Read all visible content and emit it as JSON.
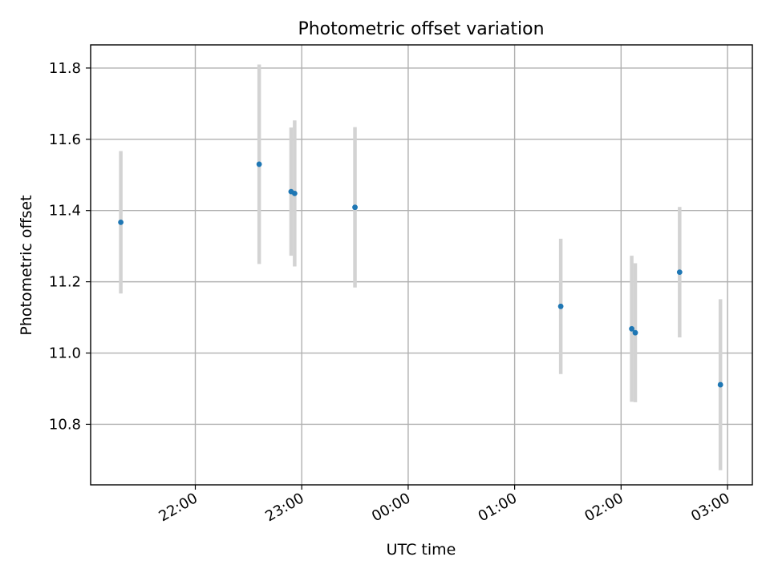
{
  "chart_data": {
    "type": "scatter",
    "title": "Photometric offset variation",
    "xlabel": "UTC time",
    "ylabel": "Photometric offset",
    "xlim": [
      "21:01",
      "03:14"
    ],
    "ylim": [
      10.63,
      11.865
    ],
    "grid": true,
    "x_tick_labels": [
      "22:00",
      "23:00",
      "00:00",
      "01:00",
      "02:00",
      "03:00"
    ],
    "y_tick_labels": [
      "10.8",
      "11.0",
      "11.2",
      "11.4",
      "11.6",
      "11.8"
    ],
    "point_color": "#1f77b4",
    "errorbar_color": "#d3d3d3",
    "points": [
      {
        "x": "21:18",
        "y": 11.367,
        "yerr": 0.2
      },
      {
        "x": "22:36",
        "y": 11.53,
        "yerr": 0.28
      },
      {
        "x": "22:54",
        "y": 11.453,
        "yerr": 0.18
      },
      {
        "x": "22:56",
        "y": 11.448,
        "yerr": 0.205
      },
      {
        "x": "23:30",
        "y": 11.409,
        "yerr": 0.225
      },
      {
        "x": "01:26",
        "y": 11.131,
        "yerr": 0.19
      },
      {
        "x": "02:06",
        "y": 11.068,
        "yerr": 0.205
      },
      {
        "x": "02:08",
        "y": 11.057,
        "yerr": 0.195
      },
      {
        "x": "02:33",
        "y": 11.227,
        "yerr": 0.183
      },
      {
        "x": "02:56",
        "y": 10.911,
        "yerr": 0.24
      }
    ]
  }
}
